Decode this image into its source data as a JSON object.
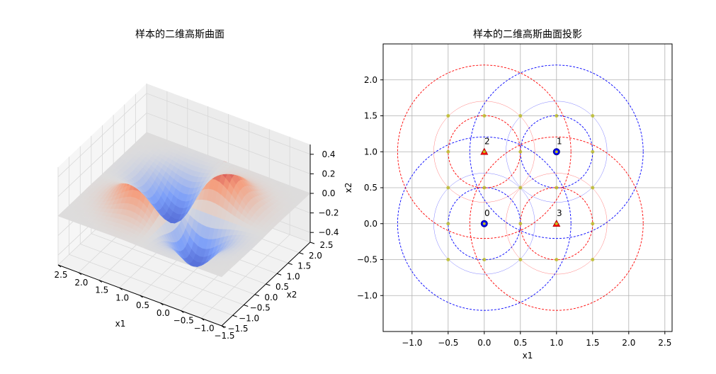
{
  "chart_data": [
    {
      "type": "surface3d",
      "title": "样本的二维高斯曲面",
      "xlabel": "x1",
      "ylabel": "x2",
      "xlim": [
        -1.5,
        2.5
      ],
      "ylim": [
        -1.5,
        2.5
      ],
      "zlim": [
        -0.5,
        0.5
      ],
      "xticks": [
        "−1.5",
        "−1.0",
        "−0.5",
        "0.0",
        "0.5",
        "1.0",
        "1.5",
        "2.0",
        "2.5"
      ],
      "yticks": [
        "−1.5",
        "−1.0",
        "−0.5",
        "0.0",
        "0.5",
        "1.0",
        "1.5",
        "2.0",
        "2.5"
      ],
      "zticks": [
        "−0.4",
        "−0.2",
        "0.0",
        "0.2",
        "0.4"
      ],
      "colormap": "coolwarm",
      "samples": [
        {
          "x": 1,
          "y": 1,
          "label": 1,
          "weight": -0.5
        },
        {
          "x": 0,
          "y": 0,
          "label": 1,
          "weight": -0.5
        },
        {
          "x": 0,
          "y": 1,
          "label": -1,
          "weight": 0.5
        },
        {
          "x": 1,
          "y": 0,
          "label": -1,
          "weight": 0.5
        }
      ]
    },
    {
      "type": "scatter",
      "title": "样本的二维高斯曲面投影",
      "xlabel": "x1",
      "ylabel": "x2",
      "xlim": [
        -1.4,
        2.6
      ],
      "ylim": [
        -1.5,
        2.5
      ],
      "xticks": [
        -1.0,
        -0.5,
        0.0,
        0.5,
        1.0,
        1.5,
        2.0,
        2.5
      ],
      "xtick_labels": [
        "−1.0",
        "−0.5",
        "0.0",
        "0.5",
        "1.0",
        "1.5",
        "2.0",
        "2.5"
      ],
      "yticks": [
        -1.0,
        -0.5,
        0.0,
        0.5,
        1.0,
        1.5,
        2.0
      ],
      "ytick_labels": [
        "−1.0",
        "−0.5",
        "0.0",
        "0.5",
        "1.0",
        "1.5",
        "2.0"
      ],
      "grid": true,
      "points": [
        {
          "label": "0",
          "x": 0,
          "y": 0,
          "class": "positive",
          "marker": "circle",
          "color": "#0000ff"
        },
        {
          "label": "1",
          "x": 1,
          "y": 1,
          "class": "positive",
          "marker": "circle",
          "color": "#0000ff"
        },
        {
          "label": "2",
          "x": 0,
          "y": 1,
          "class": "negative",
          "marker": "triangle",
          "color": "#ff0000"
        },
        {
          "label": "3",
          "x": 1,
          "y": 0,
          "class": "negative",
          "marker": "triangle",
          "color": "#ff0000"
        }
      ],
      "contour_radii": [
        0.5,
        0.7,
        1.2
      ],
      "grid_points_x": [
        -0.5,
        0,
        0.5,
        1,
        1.5
      ],
      "grid_points_y": [
        -0.5,
        0,
        0.5,
        1,
        1.5
      ],
      "grid_point_color": "#bcbd22"
    }
  ]
}
